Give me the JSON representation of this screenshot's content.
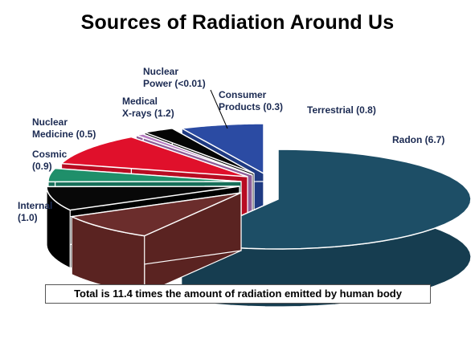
{
  "chart_data": {
    "type": "pie",
    "title": "Sources of Radiation Around Us",
    "style": "3d-exploded",
    "categories": [
      "Radon",
      "Internal",
      "Cosmic",
      "Nuclear Medicine",
      "Medical X-rays",
      "Nuclear Power",
      "Consumer Products",
      "Terrestrial"
    ],
    "values": [
      6.7,
      1.0,
      0.9,
      0.5,
      1.2,
      0.01,
      0.3,
      0.8
    ],
    "labels": [
      [
        "Radon (6.7)"
      ],
      [
        "Internal",
        "(1.0)"
      ],
      [
        "Cosmic",
        "(0.9)"
      ],
      [
        "Nuclear",
        "Medicine (0.5)"
      ],
      [
        "Medical",
        "X-rays (1.2)"
      ],
      [
        "Nuclear",
        "Power (<0.01)"
      ],
      [
        "Consumer",
        "Products (0.3)"
      ],
      [
        "Terrestrial (0.8)"
      ]
    ],
    "colors": [
      "#1d4e66",
      "#6b2d2c",
      "#080808",
      "#1f8f6a",
      "#e0102b",
      "#b57ac0",
      "#050505",
      "#2b4ba3"
    ],
    "side_colors": [
      "#163d50",
      "#5a2321",
      "#000000",
      "#17705a",
      "#b80c22",
      "#8e5e98",
      "#000000",
      "#1f3a82"
    ],
    "footnote": "Total is 11.4 times the amount of radiation emitted by human body"
  }
}
